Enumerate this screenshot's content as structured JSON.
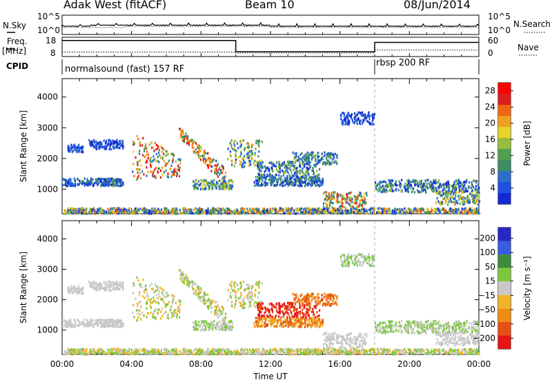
{
  "header": {
    "station": "Adak West (fitACF)",
    "beam": "Beam 10",
    "date": "08/Jun/2014"
  },
  "strip_labels": {
    "nsky": "N.Sky",
    "nsearch": "N.Search",
    "freq_top": "Freq.",
    "freq_unit": "[MHz]",
    "nave": "Nave",
    "cpid": "CPID",
    "nsky_max": "10^5",
    "nsky_min": "10^0",
    "nsearch_max": "10^5",
    "nsearch_min": "10^0",
    "freq_max": "18",
    "freq_min": "8",
    "nave_max": "60",
    "nave_min": "0"
  },
  "cpid_segments": [
    {
      "label": "normalsound (fast) 157 RF",
      "start_hour": 0
    },
    {
      "label": "rbsp 200 RF",
      "start_hour": 18
    }
  ],
  "colors": {
    "power_scale": [
      "#1428d2",
      "#1e50e6",
      "#2d6ec8",
      "#3c8c64",
      "#50a050",
      "#96be3c",
      "#e6d228",
      "#f0a01e",
      "#f06414",
      "#dc1e1e",
      "#ff0000"
    ],
    "velocity_scale": [
      "#2828c8",
      "#3a5ae0",
      "#3c8c3c",
      "#7cc83c",
      "#c8c8c8",
      "#f0b428",
      "#f08c14",
      "#e65014",
      "#e61414"
    ]
  },
  "chart_data": [
    {
      "type": "heatmap",
      "name": "power",
      "ylabel": "Slant Range [km]",
      "ylim": [
        200,
        4600
      ],
      "yticks": [
        1000,
        2000,
        3000,
        4000
      ],
      "xlim": [
        0,
        24
      ],
      "colorbar_label": "Power [dB]",
      "colorbar_ticks": [
        4,
        8,
        12,
        16,
        20,
        24,
        28
      ],
      "colorbar_range": [
        0,
        30
      ]
    },
    {
      "type": "heatmap",
      "name": "velocity",
      "ylabel": "Slant Range [km]",
      "ylim": [
        200,
        4600
      ],
      "yticks": [
        1000,
        2000,
        3000,
        4000
      ],
      "xlim": [
        0,
        24
      ],
      "xlabel": "Time UT",
      "xticks": [
        "00:00",
        "04:00",
        "08:00",
        "12:00",
        "16:00",
        "20:00",
        "00:00"
      ],
      "colorbar_label": "Velocity [m s⁻¹]",
      "colorbar_ticks": [
        "200",
        "100",
        "50",
        "15",
        "−15",
        "−50",
        "−100",
        "−200"
      ]
    },
    {
      "type": "line",
      "name": "frequency",
      "x": [
        0,
        10,
        10,
        18,
        18,
        24
      ],
      "y": [
        16.3,
        16.3,
        10.5,
        10.5,
        15.3,
        15.3
      ],
      "ylim": [
        8,
        18
      ]
    },
    {
      "type": "line",
      "name": "nave",
      "x": [
        0,
        10,
        10,
        18,
        18,
        24
      ],
      "y": [
        14,
        14,
        11,
        11,
        20,
        20
      ],
      "ylim": [
        0,
        60
      ]
    }
  ]
}
